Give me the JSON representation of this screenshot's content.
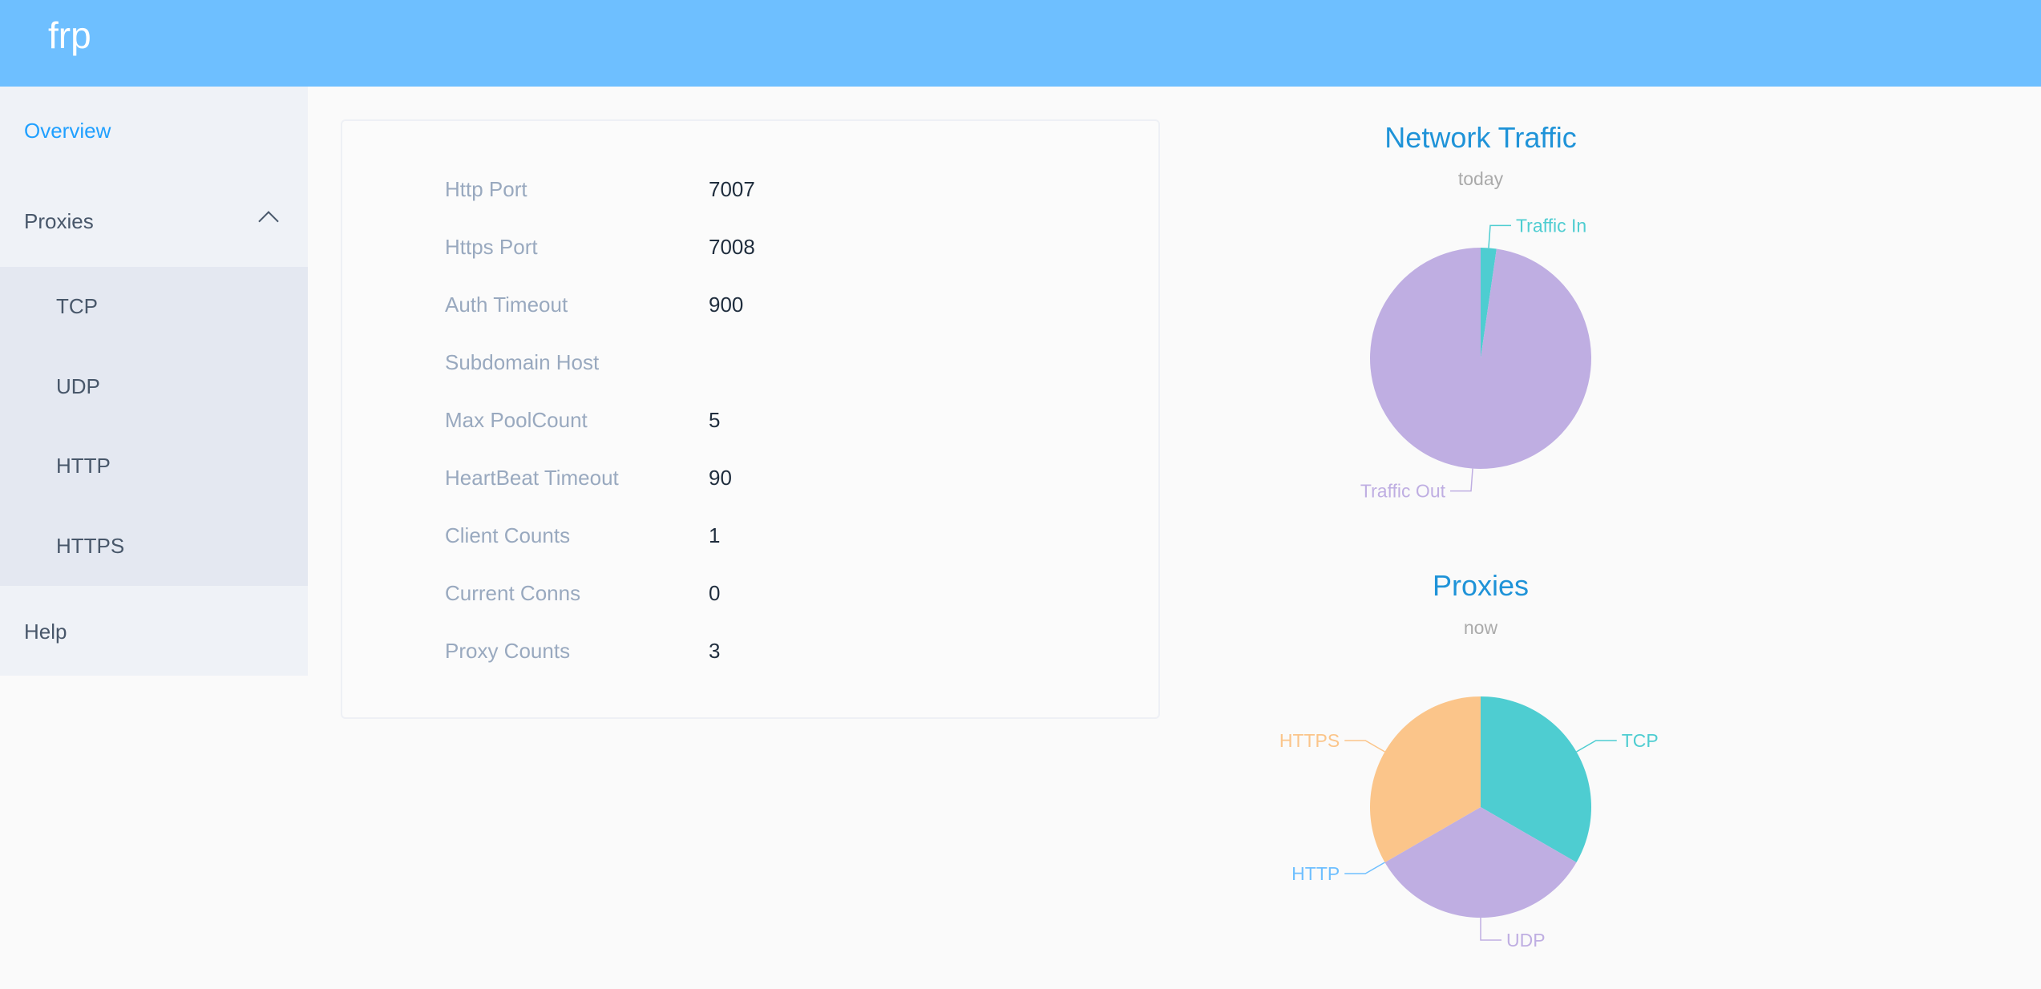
{
  "header": {
    "logo": "frp"
  },
  "sidebar": {
    "overview": "Overview",
    "proxies": "Proxies",
    "proxy_items": [
      "TCP",
      "UDP",
      "HTTP",
      "HTTPS"
    ],
    "help": "Help"
  },
  "overview": {
    "rows": [
      {
        "label": "Http Port",
        "value": "7007"
      },
      {
        "label": "Https Port",
        "value": "7008"
      },
      {
        "label": "Auth Timeout",
        "value": "900"
      },
      {
        "label": "Subdomain Host",
        "value": ""
      },
      {
        "label": "Max PoolCount",
        "value": "5"
      },
      {
        "label": "HeartBeat Timeout",
        "value": "90"
      },
      {
        "label": "Client Counts",
        "value": "1"
      },
      {
        "label": "Current Conns",
        "value": "0"
      },
      {
        "label": "Proxy Counts",
        "value": "3"
      }
    ]
  },
  "chart_data": [
    {
      "type": "pie",
      "title": "Network Traffic",
      "subtitle": "today",
      "categories": [
        "Traffic In",
        "Traffic Out"
      ],
      "values": [
        2.3,
        97.7
      ],
      "colors": [
        "#4ecdd1",
        "#bfaee2"
      ]
    },
    {
      "type": "pie",
      "title": "Proxies",
      "subtitle": "now",
      "categories": [
        "TCP",
        "UDP",
        "HTTP",
        "HTTPS"
      ],
      "values": [
        1,
        1,
        0,
        1
      ],
      "colors": [
        "#4ecdd1",
        "#bfaee2",
        "#6ebfff",
        "#fbc58a"
      ]
    }
  ]
}
